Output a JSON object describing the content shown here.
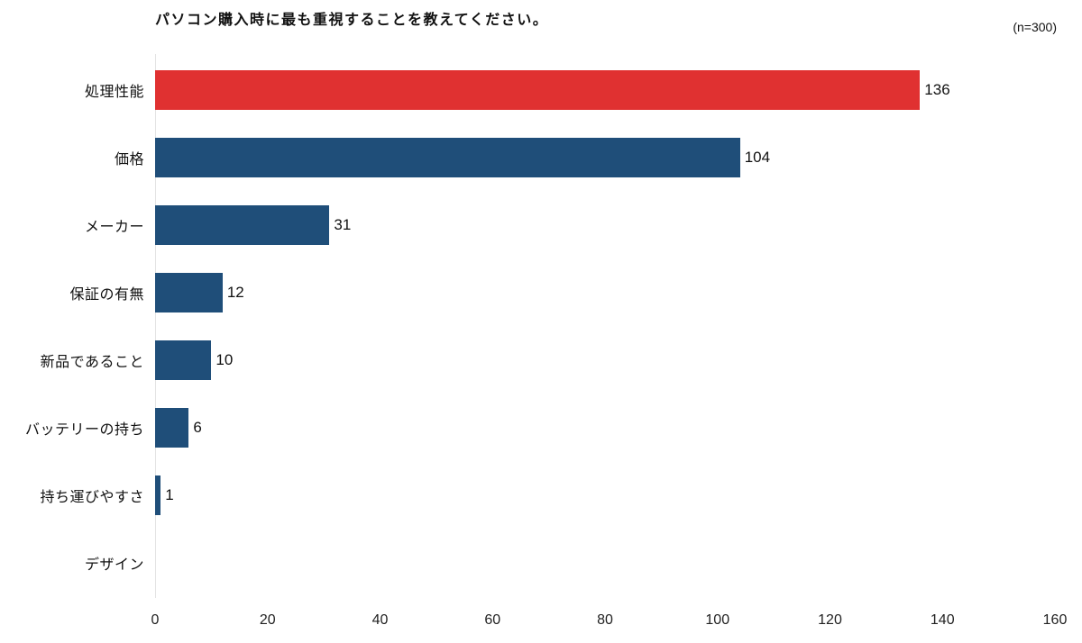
{
  "chart": {
    "title": "パソコン購入時に最も重視することを教えてください。",
    "sample_label": "(n=300)"
  },
  "chart_data": {
    "type": "bar",
    "orientation": "horizontal",
    "title": "パソコン購入時に最も重視することを教えてください。",
    "annotation": "(n=300)",
    "categories": [
      "処理性能",
      "価格",
      "メーカー",
      "保証の有無",
      "新品であること",
      "バッテリーの持ち",
      "持ち運びやすさ",
      "デザイン"
    ],
    "values": [
      136,
      104,
      31,
      12,
      10,
      6,
      1,
      0
    ],
    "bar_colors": [
      "#e03131",
      "#1f4e79",
      "#1f4e79",
      "#1f4e79",
      "#1f4e79",
      "#1f4e79",
      "#1f4e79",
      "#1f4e79"
    ],
    "show_value_labels": [
      true,
      true,
      true,
      true,
      true,
      true,
      true,
      false
    ],
    "xlabel": "",
    "ylabel": "",
    "xlim": [
      0,
      160
    ],
    "x_ticks": [
      0,
      20,
      40,
      60,
      80,
      100,
      120,
      140,
      160
    ],
    "grid": false,
    "legend": "none"
  },
  "colors": {
    "highlight": "#e03131",
    "primary": "#1f4e79",
    "text": "#111111",
    "axis_line": "#e3e3e3"
  }
}
